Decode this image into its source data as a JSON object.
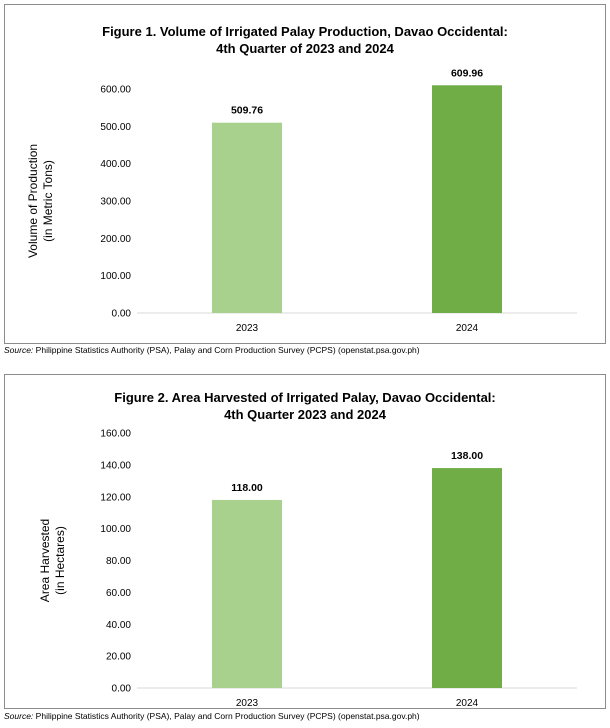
{
  "figures": [
    {
      "title_line1": "Figure 1. Volume of Irrigated Palay Production, Davao Occidental:",
      "title_line2": "4th Quarter of 2023 and 2024",
      "source_label": "Source:",
      "source_text": "Philippine Statistics Authority (PSA), Palay and Corn Production Survey (PCPS) (openstat.psa.gov.ph)"
    },
    {
      "title_line1": "Figure 2. Area Harvested of Irrigated Palay, Davao Occidental:",
      "title_line2": "4th Quarter 2023 and 2024",
      "source_label": "Source:",
      "source_text": "Philippine Statistics Authority (PSA), Palay and Corn Production Survey (PCPS) (openstat.psa.gov.ph)"
    }
  ],
  "chart_data": [
    {
      "type": "bar",
      "title": "Figure 1. Volume of Irrigated Palay Production, Davao Occidental: 4th Quarter of 2023 and 2024",
      "categories": [
        "2023",
        "2024"
      ],
      "values": [
        509.76,
        609.96
      ],
      "value_labels": [
        "509.76",
        "609.96"
      ],
      "colors": [
        "#a9d18e",
        "#70ad47"
      ],
      "ylabel_line1": "Volume of Production",
      "ylabel_line2": "(in Metric Tons)",
      "xlabel": "",
      "ylim": [
        0,
        600
      ],
      "yticks": [
        0,
        100,
        200,
        300,
        400,
        500,
        600
      ],
      "ytick_labels": [
        "0.00",
        "100.00",
        "200.00",
        "300.00",
        "400.00",
        "500.00",
        "600.00"
      ],
      "grid": false
    },
    {
      "type": "bar",
      "title": "Figure 2. Area Harvested of Irrigated Palay, Davao Occidental: 4th Quarter 2023 and 2024",
      "categories": [
        "2023",
        "2024"
      ],
      "values": [
        118.0,
        138.0
      ],
      "value_labels": [
        "118.00",
        "138.00"
      ],
      "colors": [
        "#a9d18e",
        "#70ad47"
      ],
      "ylabel_line1": "Area Harvested",
      "ylabel_line2": "(in Hectares)",
      "xlabel": "",
      "ylim": [
        0,
        160
      ],
      "yticks": [
        0,
        20,
        40,
        60,
        80,
        100,
        120,
        140,
        160
      ],
      "ytick_labels": [
        "0.00",
        "20.00",
        "40.00",
        "60.00",
        "80.00",
        "100.00",
        "120.00",
        "140.00",
        "160.00"
      ],
      "grid": false
    }
  ]
}
